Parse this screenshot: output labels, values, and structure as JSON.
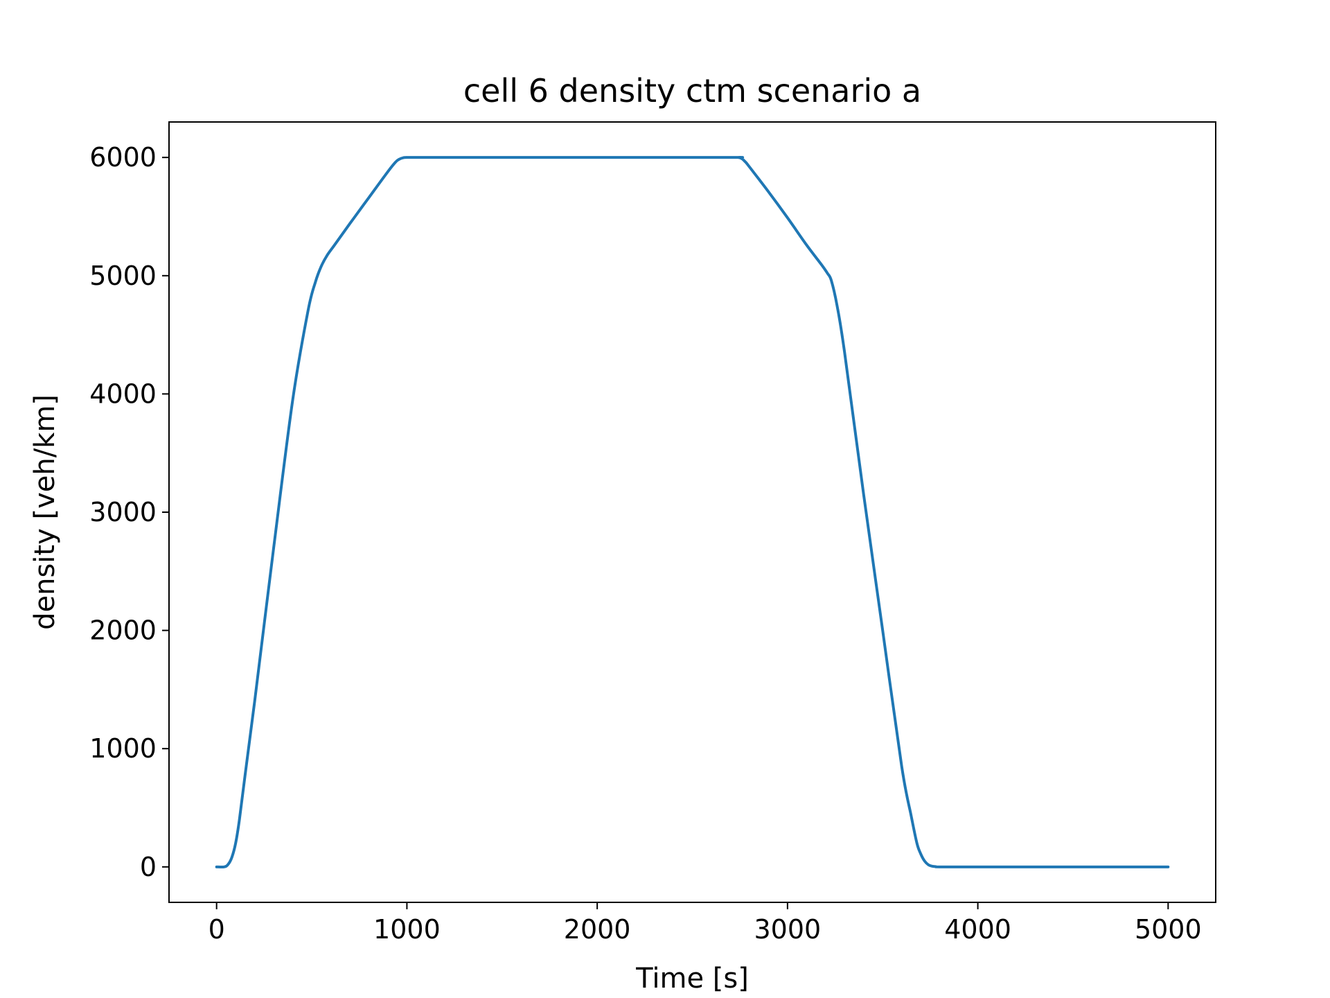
{
  "chart_data": {
    "type": "line",
    "title": "cell 6 density ctm scenario a",
    "xlabel": "Time [s]",
    "ylabel": "density [veh/km]",
    "xlim": [
      -250,
      5250
    ],
    "ylim": [
      -300,
      6300
    ],
    "xticks": [
      0,
      1000,
      2000,
      3000,
      4000,
      5000
    ],
    "xtick_labels": [
      "0",
      "1000",
      "2000",
      "3000",
      "4000",
      "5000"
    ],
    "yticks": [
      0,
      1000,
      2000,
      3000,
      4000,
      5000,
      6000
    ],
    "ytick_labels": [
      "0",
      "1000",
      "2000",
      "3000",
      "4000",
      "5000",
      "6000"
    ],
    "grid": false,
    "series": [
      {
        "color": "#1f77b4",
        "x": [
          0,
          40,
          60,
          80,
          100,
          120,
          150,
          200,
          300,
          400,
          480,
          520,
          550,
          580,
          620,
          700,
          800,
          900,
          940,
          960,
          980,
          1000,
          1100,
          2000,
          2700,
          2740,
          2760,
          2780,
          2800,
          2900,
          3000,
          3100,
          3180,
          3210,
          3230,
          3260,
          3300,
          3400,
          3500,
          3600,
          3650,
          3680,
          3700,
          3720,
          3740,
          3760,
          3780,
          3800,
          4000,
          5000
        ],
        "y": [
          0,
          0,
          20,
          80,
          200,
          400,
          780,
          1400,
          2700,
          3950,
          4700,
          4950,
          5080,
          5170,
          5260,
          5440,
          5660,
          5880,
          5960,
          5985,
          5997,
          6000,
          6000,
          6000,
          6000,
          6000,
          5990,
          5960,
          5920,
          5710,
          5490,
          5260,
          5090,
          5020,
          4960,
          4750,
          4350,
          3150,
          2000,
          850,
          430,
          200,
          110,
          50,
          18,
          6,
          2,
          0,
          0,
          0
        ]
      }
    ]
  }
}
